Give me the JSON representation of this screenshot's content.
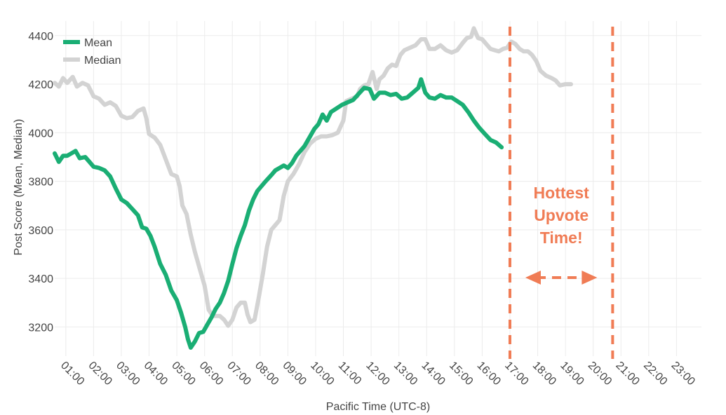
{
  "chart_data": {
    "type": "line",
    "xlabel": "Pacific Time (UTC-8)",
    "ylabel": "Post Score (Mean, Median)",
    "ylim": [
      3080,
      4460
    ],
    "xlim": [
      0.6,
      23.9
    ],
    "grid": true,
    "legend_position": "top-left",
    "y_ticks": [
      3200,
      3400,
      3600,
      3800,
      4000,
      4200,
      4400
    ],
    "x_ticks": [
      {
        "x": 1,
        "label": "01:00"
      },
      {
        "x": 2,
        "label": "02:00"
      },
      {
        "x": 3,
        "label": "03:00"
      },
      {
        "x": 4,
        "label": "04:00"
      },
      {
        "x": 5,
        "label": "05:00"
      },
      {
        "x": 6,
        "label": "06:00"
      },
      {
        "x": 7,
        "label": "07:00"
      },
      {
        "x": 8,
        "label": "08:00"
      },
      {
        "x": 9,
        "label": "09:00"
      },
      {
        "x": 10,
        "label": "10:00"
      },
      {
        "x": 11,
        "label": "11:00"
      },
      {
        "x": 12,
        "label": "12:00"
      },
      {
        "x": 13,
        "label": "13:00"
      },
      {
        "x": 14,
        "label": "14:00"
      },
      {
        "x": 15,
        "label": "15:00"
      },
      {
        "x": 16,
        "label": "16:00"
      },
      {
        "x": 17,
        "label": "17:00"
      },
      {
        "x": 18,
        "label": "18:00"
      },
      {
        "x": 19,
        "label": "19:00"
      },
      {
        "x": 20,
        "label": "20:00"
      },
      {
        "x": 21,
        "label": "21:00"
      },
      {
        "x": 22,
        "label": "22:00"
      },
      {
        "x": 23,
        "label": "23:00"
      }
    ],
    "series": [
      {
        "name": "Median",
        "color": "#d3d3d3",
        "points": [
          [
            0.6,
            4205
          ],
          [
            0.75,
            4190
          ],
          [
            0.9,
            4225
          ],
          [
            1.05,
            4205
          ],
          [
            1.25,
            4230
          ],
          [
            1.4,
            4190
          ],
          [
            1.6,
            4205
          ],
          [
            1.8,
            4195
          ],
          [
            2.0,
            4150
          ],
          [
            2.2,
            4140
          ],
          [
            2.4,
            4115
          ],
          [
            2.6,
            4125
          ],
          [
            2.8,
            4110
          ],
          [
            3.0,
            4070
          ],
          [
            3.2,
            4060
          ],
          [
            3.4,
            4065
          ],
          [
            3.6,
            4090
          ],
          [
            3.8,
            4100
          ],
          [
            3.9,
            4060
          ],
          [
            4.0,
            3995
          ],
          [
            4.2,
            3980
          ],
          [
            4.4,
            3950
          ],
          [
            4.6,
            3890
          ],
          [
            4.8,
            3830
          ],
          [
            5.0,
            3820
          ],
          [
            5.1,
            3780
          ],
          [
            5.2,
            3700
          ],
          [
            5.35,
            3665
          ],
          [
            5.5,
            3580
          ],
          [
            5.65,
            3510
          ],
          [
            5.85,
            3430
          ],
          [
            6.0,
            3370
          ],
          [
            6.15,
            3270
          ],
          [
            6.3,
            3245
          ],
          [
            6.45,
            3245
          ],
          [
            6.55,
            3245
          ],
          [
            6.7,
            3230
          ],
          [
            6.85,
            3205
          ],
          [
            7.0,
            3230
          ],
          [
            7.15,
            3280
          ],
          [
            7.3,
            3300
          ],
          [
            7.45,
            3300
          ],
          [
            7.55,
            3250
          ],
          [
            7.65,
            3220
          ],
          [
            7.8,
            3230
          ],
          [
            7.95,
            3320
          ],
          [
            8.1,
            3420
          ],
          [
            8.25,
            3530
          ],
          [
            8.4,
            3600
          ],
          [
            8.55,
            3620
          ],
          [
            8.7,
            3640
          ],
          [
            8.85,
            3740
          ],
          [
            9.0,
            3800
          ],
          [
            9.2,
            3830
          ],
          [
            9.4,
            3870
          ],
          [
            9.6,
            3920
          ],
          [
            9.8,
            3955
          ],
          [
            10.0,
            3975
          ],
          [
            10.2,
            3985
          ],
          [
            10.4,
            3985
          ],
          [
            10.6,
            3990
          ],
          [
            10.8,
            4000
          ],
          [
            11.0,
            4050
          ],
          [
            11.1,
            4130
          ],
          [
            11.3,
            4140
          ],
          [
            11.5,
            4150
          ],
          [
            11.6,
            4180
          ],
          [
            11.75,
            4195
          ],
          [
            11.9,
            4200
          ],
          [
            12.05,
            4250
          ],
          [
            12.2,
            4180
          ],
          [
            12.3,
            4220
          ],
          [
            12.45,
            4235
          ],
          [
            12.6,
            4265
          ],
          [
            12.75,
            4280
          ],
          [
            12.9,
            4275
          ],
          [
            13.05,
            4320
          ],
          [
            13.2,
            4340
          ],
          [
            13.4,
            4350
          ],
          [
            13.6,
            4360
          ],
          [
            13.8,
            4385
          ],
          [
            13.95,
            4385
          ],
          [
            14.1,
            4345
          ],
          [
            14.3,
            4345
          ],
          [
            14.5,
            4360
          ],
          [
            14.7,
            4340
          ],
          [
            14.9,
            4330
          ],
          [
            15.1,
            4340
          ],
          [
            15.3,
            4370
          ],
          [
            15.45,
            4390
          ],
          [
            15.6,
            4395
          ],
          [
            15.7,
            4430
          ],
          [
            15.85,
            4390
          ],
          [
            16.0,
            4385
          ],
          [
            16.15,
            4365
          ],
          [
            16.3,
            4345
          ],
          [
            16.45,
            4340
          ],
          [
            16.6,
            4335
          ],
          [
            16.75,
            4345
          ],
          [
            16.9,
            4350
          ],
          [
            17.05,
            4375
          ],
          [
            17.2,
            4365
          ],
          [
            17.35,
            4345
          ],
          [
            17.5,
            4335
          ],
          [
            17.65,
            4335
          ],
          [
            17.8,
            4320
          ],
          [
            17.95,
            4295
          ],
          [
            18.1,
            4255
          ],
          [
            18.3,
            4235
          ],
          [
            18.5,
            4225
          ],
          [
            18.65,
            4215
          ],
          [
            18.8,
            4195
          ],
          [
            19.0,
            4200
          ],
          [
            19.2,
            4200
          ]
        ]
      },
      {
        "name": "Mean",
        "color": "#1aae74",
        "points": [
          [
            0.6,
            3915
          ],
          [
            0.75,
            3880
          ],
          [
            0.9,
            3905
          ],
          [
            1.05,
            3905
          ],
          [
            1.2,
            3915
          ],
          [
            1.35,
            3925
          ],
          [
            1.5,
            3895
          ],
          [
            1.7,
            3900
          ],
          [
            1.85,
            3880
          ],
          [
            2.0,
            3860
          ],
          [
            2.2,
            3855
          ],
          [
            2.4,
            3845
          ],
          [
            2.6,
            3820
          ],
          [
            2.8,
            3770
          ],
          [
            3.0,
            3725
          ],
          [
            3.2,
            3710
          ],
          [
            3.4,
            3685
          ],
          [
            3.6,
            3660
          ],
          [
            3.75,
            3610
          ],
          [
            3.9,
            3605
          ],
          [
            4.05,
            3575
          ],
          [
            4.2,
            3530
          ],
          [
            4.4,
            3460
          ],
          [
            4.6,
            3415
          ],
          [
            4.8,
            3350
          ],
          [
            5.0,
            3310
          ],
          [
            5.15,
            3260
          ],
          [
            5.3,
            3200
          ],
          [
            5.4,
            3150
          ],
          [
            5.5,
            3115
          ],
          [
            5.65,
            3140
          ],
          [
            5.8,
            3175
          ],
          [
            5.95,
            3180
          ],
          [
            6.1,
            3210
          ],
          [
            6.25,
            3240
          ],
          [
            6.4,
            3275
          ],
          [
            6.55,
            3300
          ],
          [
            6.7,
            3340
          ],
          [
            6.85,
            3390
          ],
          [
            7.0,
            3460
          ],
          [
            7.15,
            3525
          ],
          [
            7.3,
            3575
          ],
          [
            7.45,
            3620
          ],
          [
            7.6,
            3680
          ],
          [
            7.75,
            3725
          ],
          [
            7.9,
            3760
          ],
          [
            8.05,
            3780
          ],
          [
            8.2,
            3800
          ],
          [
            8.4,
            3825
          ],
          [
            8.55,
            3845
          ],
          [
            8.7,
            3855
          ],
          [
            8.85,
            3865
          ],
          [
            9.0,
            3855
          ],
          [
            9.15,
            3875
          ],
          [
            9.3,
            3905
          ],
          [
            9.45,
            3925
          ],
          [
            9.6,
            3945
          ],
          [
            9.8,
            3985
          ],
          [
            9.95,
            4015
          ],
          [
            10.1,
            4035
          ],
          [
            10.25,
            4075
          ],
          [
            10.4,
            4050
          ],
          [
            10.55,
            4085
          ],
          [
            10.75,
            4100
          ],
          [
            10.95,
            4115
          ],
          [
            11.15,
            4125
          ],
          [
            11.35,
            4135
          ],
          [
            11.55,
            4160
          ],
          [
            11.75,
            4185
          ],
          [
            11.95,
            4180
          ],
          [
            12.1,
            4140
          ],
          [
            12.3,
            4165
          ],
          [
            12.5,
            4165
          ],
          [
            12.7,
            4155
          ],
          [
            12.9,
            4160
          ],
          [
            13.1,
            4140
          ],
          [
            13.3,
            4145
          ],
          [
            13.5,
            4165
          ],
          [
            13.7,
            4185
          ],
          [
            13.8,
            4220
          ],
          [
            13.95,
            4165
          ],
          [
            14.1,
            4145
          ],
          [
            14.3,
            4140
          ],
          [
            14.5,
            4155
          ],
          [
            14.7,
            4145
          ],
          [
            14.9,
            4145
          ],
          [
            15.1,
            4130
          ],
          [
            15.3,
            4115
          ],
          [
            15.5,
            4085
          ],
          [
            15.7,
            4050
          ],
          [
            15.9,
            4020
          ],
          [
            16.1,
            3995
          ],
          [
            16.3,
            3970
          ],
          [
            16.5,
            3960
          ],
          [
            16.7,
            3940
          ]
        ]
      }
    ],
    "annotation": {
      "lines": [
        "Hottest",
        "Upvote",
        "Time!"
      ],
      "color": "#f07c55",
      "vlines_x": [
        17.0,
        20.7
      ]
    }
  }
}
